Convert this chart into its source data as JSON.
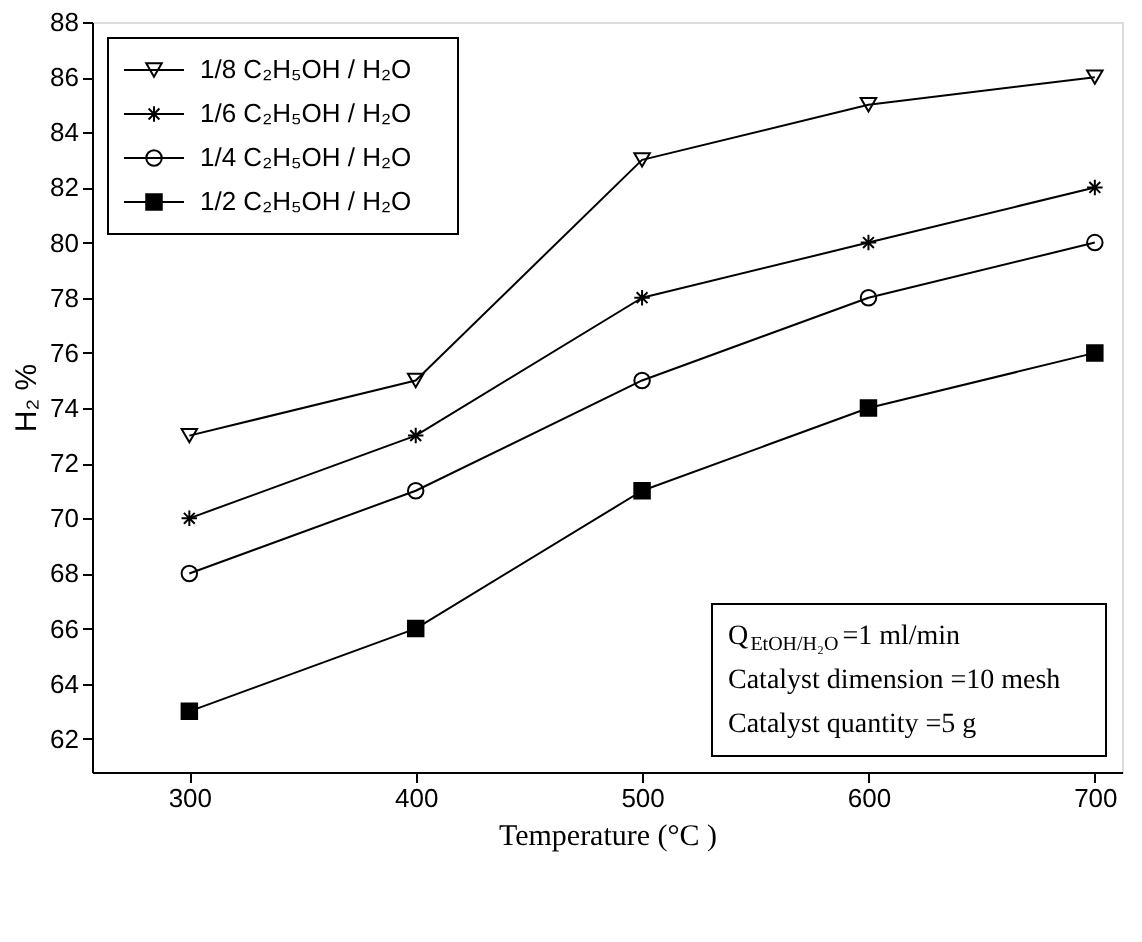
{
  "chart_data": {
    "type": "line",
    "xlabel": "Temperature (°C )",
    "ylabel": "H₂ %",
    "x": [
      300,
      400,
      500,
      600,
      700
    ],
    "series": [
      {
        "name": "1/8 C₂H₅OH / H₂O",
        "color": "#000000",
        "marker": "triangle",
        "values": [
          73,
          75,
          83,
          85,
          86
        ]
      },
      {
        "name": "1/6 C₂H₅OH / H₂O",
        "color": "#000000",
        "marker": "cross",
        "values": [
          70,
          73,
          78,
          80,
          82
        ]
      },
      {
        "name": "1/4 C₂H₅OH / H₂O",
        "color": "#000000",
        "marker": "circle",
        "values": [
          68,
          71,
          75,
          78,
          80
        ]
      },
      {
        "name": "1/2 C₂H₅OH / H₂O",
        "color": "#000000",
        "marker": "square",
        "values": [
          63,
          66,
          71,
          74,
          76
        ]
      }
    ],
    "xlim": [
      257,
      712
    ],
    "xticks": [
      300,
      400,
      500,
      600,
      700
    ],
    "ylim": [
      60.8,
      88
    ],
    "yticks": [
      62,
      64,
      66,
      68,
      70,
      72,
      74,
      76,
      78,
      80,
      82,
      84,
      86,
      88
    ],
    "grid": false,
    "legend": "top left",
    "line_style": "solid",
    "annotations": [
      "Q$_{EtOH/H₂O}$=1 ml/min",
      "Catalyst dimension =10 mesh",
      "Catalyst quantity =5 g"
    ]
  }
}
